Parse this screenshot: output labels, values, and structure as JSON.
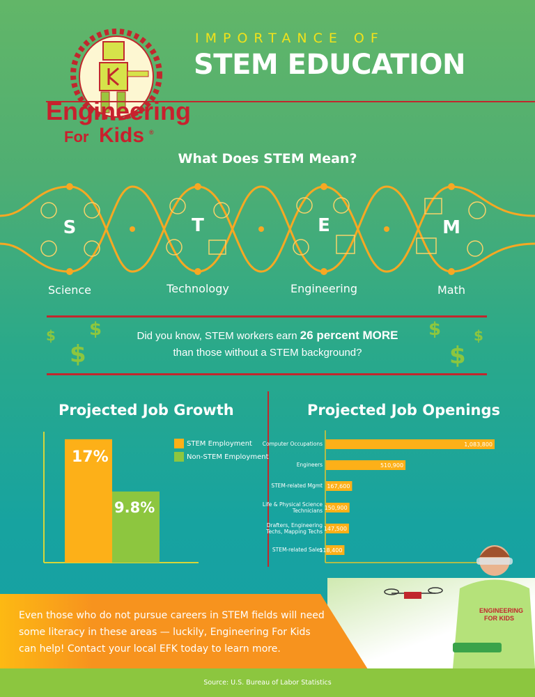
{
  "header": {
    "subtitle": "IMPORTANCE OF",
    "title": "STEM EDUCATION"
  },
  "logo": {
    "line1": "Engineering",
    "line2_a": "For",
    "line2_b": "Kids",
    "reg": "®"
  },
  "stem": {
    "heading": "What Does STEM Mean?",
    "items": [
      {
        "letter": "S",
        "label": "Science",
        "icons": [
          "flask-icon",
          "atom-icon",
          "planet-icon",
          "microscope-icon"
        ]
      },
      {
        "letter": "T",
        "label": "Technology",
        "icons": [
          "lightbulb-icon",
          "gear-head-icon",
          "code-window-icon",
          "network-icon"
        ]
      },
      {
        "letter": "E",
        "label": "Engineering",
        "icons": [
          "hardhat-icon",
          "compass-icon",
          "robot-arm-icon",
          "city-icon"
        ]
      },
      {
        "letter": "M",
        "label": "Math",
        "icons": [
          "calculator-icon",
          "math-operators-icon",
          "chart-icon",
          "idea-head-icon"
        ]
      }
    ]
  },
  "fact": {
    "pre": "Did you know, STEM workers earn ",
    "bold": "26 percent MORE",
    "line2": "than those without a STEM background?",
    "dollar": "$"
  },
  "chart_data": [
    {
      "type": "bar",
      "title": "Projected Job Growth",
      "categories": [
        "STEM Employment",
        "Non-STEM Employment"
      ],
      "values": [
        17,
        9.8
      ],
      "labels": [
        "17%",
        "9.8%"
      ],
      "ylim": [
        0,
        19
      ],
      "grid": false,
      "legend": "top-right",
      "colors": [
        "#fdb018",
        "#8dc63f"
      ]
    },
    {
      "type": "bar",
      "orientation": "horizontal",
      "title": "Projected Job Openings",
      "categories": [
        "Computer Occupations",
        "Engineers",
        "STEM-related Mgmt",
        "Life & Physical Science Technicians",
        "Drafters, Engineering Techs, Mapping Techs",
        "STEM-related Sales"
      ],
      "values": [
        1083800,
        510900,
        167600,
        150900,
        147500,
        118400
      ],
      "labels": [
        "1,083,800",
        "510,900",
        "167,600",
        "150,900",
        "147,500",
        "118,400"
      ],
      "xlim": [
        0,
        1083800
      ],
      "grid": false,
      "color": "#fdb018"
    }
  ],
  "bottom": {
    "text": "Even those who do not pursue careers in STEM fields will need some literacy in these areas — luckily, Engineering For Kids can help! Contact your local EFK today to learn more.",
    "shirt": "ENGINEERING FOR KIDS"
  },
  "footer": {
    "source": "Source: U.S. Bureau of Labor Statistics"
  },
  "colors": {
    "orange": "#fdb018",
    "green": "#8cc63f",
    "red": "#c1272d",
    "yellow": "#f1e21b"
  }
}
